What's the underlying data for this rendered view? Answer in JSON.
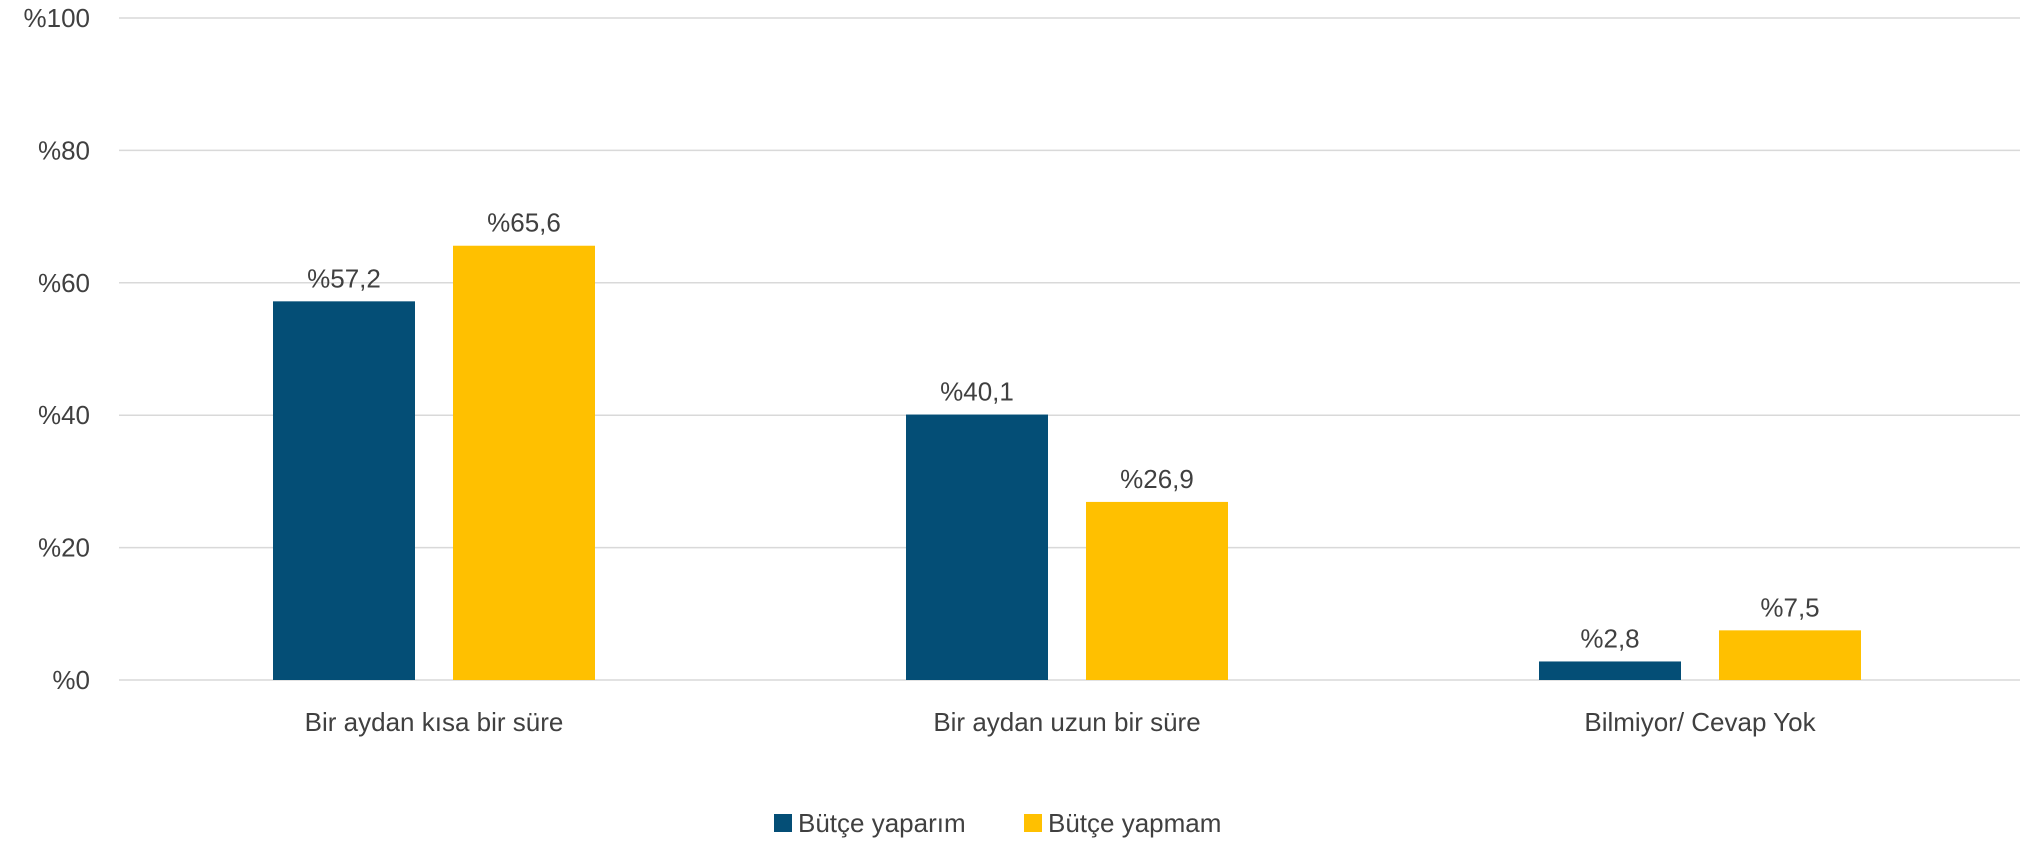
{
  "chart_data": {
    "type": "bar",
    "categories": [
      "Bir aydan kısa bir süre",
      "Bir aydan uzun bir süre",
      "Bilmiyor/ Cevap Yok"
    ],
    "series": [
      {
        "name": "Bütçe yaparım",
        "color": "#044E76",
        "values": [
          57.2,
          40.1,
          2.8
        ],
        "labels": [
          "%57,2",
          "%40,1",
          "%2,8"
        ]
      },
      {
        "name": "Bütçe yapmam",
        "color": "#FFC000",
        "values": [
          65.6,
          26.9,
          7.5
        ],
        "labels": [
          "%65,6",
          "%26,9",
          "%7,5"
        ]
      }
    ],
    "ylim": [
      0,
      100
    ],
    "yticks": [
      0,
      20,
      40,
      60,
      80,
      100
    ],
    "ytick_labels": [
      "%0",
      "%20",
      "%40",
      "%60",
      "%80",
      "%100"
    ],
    "grid": true,
    "legend_position": "bottom-center",
    "title": "",
    "xlabel": "",
    "ylabel": ""
  }
}
